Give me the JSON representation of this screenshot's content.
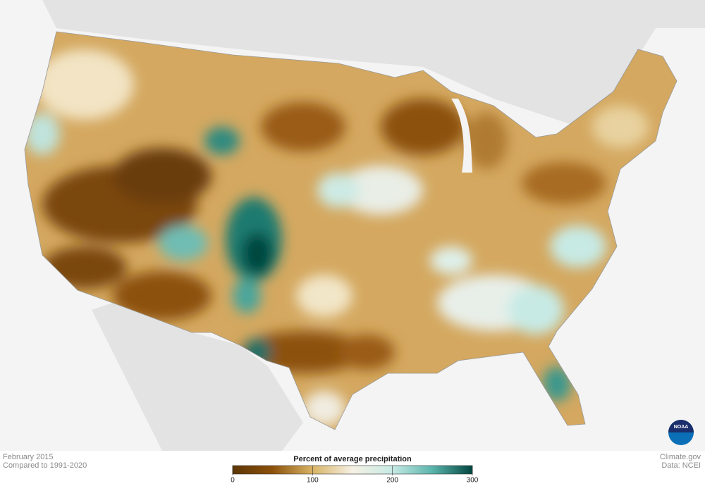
{
  "header": {
    "date": "February 2015",
    "baseline": "Compared to 1991-2020"
  },
  "legend": {
    "title": "Percent of average precipitation",
    "range": [
      0,
      300
    ],
    "ticks": [
      0,
      100,
      200,
      300
    ],
    "colors": [
      "#5c3506",
      "#8c510a",
      "#d8b365",
      "#f6f1e4",
      "#c7eae5",
      "#5ab4ac",
      "#01463f"
    ]
  },
  "credits": {
    "source": "Climate.gov",
    "data": "Data: NCEI",
    "logo": "NOAA"
  }
}
